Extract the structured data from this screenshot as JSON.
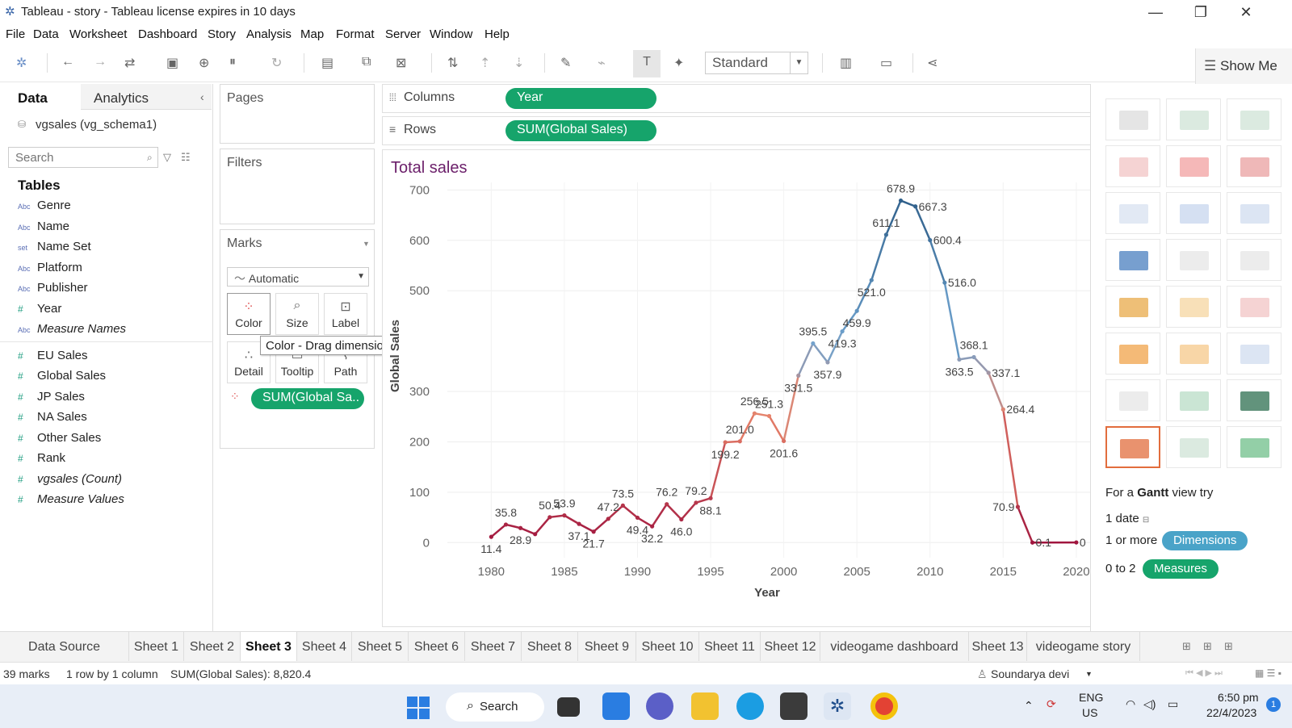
{
  "window": {
    "title": "Tableau - story - Tableau license expires in 10 days",
    "minimize": "—",
    "restore": "❐",
    "close": "✕"
  },
  "menu": [
    "File",
    "Data",
    "Worksheet",
    "Dashboard",
    "Story",
    "Analysis",
    "Map",
    "Format",
    "Server",
    "Window",
    "Help"
  ],
  "toolbar": {
    "fit_mode": "Standard",
    "show_me_label": "Show Me"
  },
  "data_pane": {
    "tab_data": "Data",
    "tab_analytics": "Analytics",
    "collapse": "‹",
    "datasource": "vgsales (vg_schema1)",
    "search_placeholder": "Search",
    "tables_heading": "Tables",
    "dimensions": [
      {
        "type": "Abc",
        "name": "Genre",
        "italic": false
      },
      {
        "type": "Abc",
        "name": "Name",
        "italic": false
      },
      {
        "type": "set",
        "name": "Name Set",
        "italic": false
      },
      {
        "type": "Abc",
        "name": "Platform",
        "italic": false
      },
      {
        "type": "Abc",
        "name": "Publisher",
        "italic": false
      },
      {
        "type": "#",
        "name": "Year",
        "italic": false
      },
      {
        "type": "Abc",
        "name": "Measure Names",
        "italic": true
      }
    ],
    "measures": [
      {
        "type": "#",
        "name": "EU Sales",
        "italic": false
      },
      {
        "type": "#",
        "name": "Global Sales",
        "italic": false
      },
      {
        "type": "#",
        "name": "JP Sales",
        "italic": false
      },
      {
        "type": "#",
        "name": "NA Sales",
        "italic": false
      },
      {
        "type": "#",
        "name": "Other Sales",
        "italic": false
      },
      {
        "type": "#",
        "name": "Rank",
        "italic": false
      },
      {
        "type": "#",
        "name": "vgsales (Count)",
        "italic": true
      },
      {
        "type": "#",
        "name": "Measure Values",
        "italic": true
      }
    ]
  },
  "cards": {
    "pages": "Pages",
    "filters": "Filters",
    "marks": "Marks",
    "mark_type": "Automatic",
    "mark_buttons": [
      "Color",
      "Size",
      "Label",
      "Detail",
      "Tooltip",
      "Path"
    ],
    "color_pill": "SUM(Global Sa..",
    "tooltip": "Color - Drag dimensions or measures here, or click for more options."
  },
  "shelves": {
    "columns_label": "Columns",
    "rows_label": "Rows",
    "columns_pill": "Year",
    "rows_pill": "SUM(Global Sales)"
  },
  "chart_data": {
    "type": "line",
    "title": "Total sales",
    "xlabel": "Year",
    "ylabel": "Global Sales",
    "xlim": [
      1977,
      2021
    ],
    "ylim": [
      -30,
      715
    ],
    "xticks": [
      1980,
      1985,
      1990,
      1995,
      2000,
      2005,
      2010,
      2015,
      2020
    ],
    "yticks": [
      0,
      100,
      200,
      300,
      500,
      600,
      700
    ],
    "x": [
      1980,
      1981,
      1982,
      1983,
      1984,
      1985,
      1986,
      1987,
      1988,
      1989,
      1990,
      1991,
      1992,
      1993,
      1994,
      1995,
      1996,
      1997,
      1998,
      1999,
      2000,
      2001,
      2002,
      2003,
      2004,
      2005,
      2006,
      2007,
      2008,
      2009,
      2010,
      2011,
      2012,
      2013,
      2014,
      2015,
      2016,
      2017,
      2020
    ],
    "values": [
      11.4,
      35.8,
      28.9,
      16.8,
      50.4,
      53.9,
      37.1,
      21.7,
      47.2,
      73.5,
      49.4,
      32.2,
      76.2,
      46.0,
      79.2,
      88.1,
      199.2,
      201.0,
      256.5,
      251.3,
      201.6,
      331.5,
      395.5,
      357.9,
      419.3,
      459.9,
      521.0,
      611.1,
      678.9,
      667.3,
      600.4,
      516.0,
      363.5,
      368.1,
      337.1,
      264.4,
      70.9,
      0.1,
      0.3
    ],
    "labels": [
      "11.4",
      "35.8",
      "28.9",
      "",
      "50.4",
      "53.9",
      "37.1",
      "21.7",
      "47.2",
      "73.5",
      "49.4",
      "32.2",
      "76.2",
      "46.0",
      "79.2",
      "88.1",
      "199.2",
      "201.0",
      "256.5",
      "251.3",
      "201.6",
      "331.5",
      "395.5",
      "357.9",
      "419.3",
      "459.9",
      "521.0",
      "611.1",
      "678.9",
      "667.3",
      "600.4",
      "516.0",
      "363.5",
      "368.1",
      "337.1",
      "264.4",
      "70.9",
      "0.1",
      "0"
    ],
    "label_side": [
      "below",
      "above",
      "below",
      "",
      "above",
      "above",
      "below",
      "below",
      "above",
      "above",
      "below",
      "below",
      "above",
      "below",
      "above",
      "below",
      "below",
      "above",
      "above",
      "above",
      "below",
      "below",
      "above",
      "below",
      "below",
      "below",
      "below",
      "above",
      "above",
      "right",
      "right",
      "right",
      "below",
      "above",
      "right",
      "right",
      "left",
      "right",
      "right"
    ],
    "grid": true,
    "color_scale": {
      "low": "#a0153e",
      "mid": "#e8836a",
      "mid2": "#6fa3cf",
      "high": "#2f5f8a"
    }
  },
  "show_me": {
    "hint_prefix": "For a ",
    "hint_bold": "Gantt",
    "hint_suffix": " view try",
    "req1": "1 date",
    "req2": "1 or more",
    "req2_pill": "Dimensions",
    "req3": "0 to 2",
    "req3_pill": "Measures"
  },
  "sheet_tabs": [
    "Data Source",
    "Sheet 1",
    "Sheet 2",
    "Sheet 3",
    "Sheet 4",
    "Sheet 5",
    "Sheet 6",
    "Sheet 7",
    "Sheet 8",
    "Sheet 9",
    "Sheet 10",
    "Sheet 11",
    "Sheet 12",
    "videogame dashboard",
    "Sheet 13",
    "videogame story"
  ],
  "active_sheet": "Sheet 3",
  "status": {
    "marks": "39 marks",
    "grid": "1 row by 1 column",
    "sum": "SUM(Global Sales): 8,820.4",
    "user": "Soundarya devi"
  },
  "taskbar": {
    "search": "Search",
    "lang": "ENG",
    "region": "US",
    "time": "6:50 pm",
    "date": "22/4/2023",
    "notif": "1"
  }
}
